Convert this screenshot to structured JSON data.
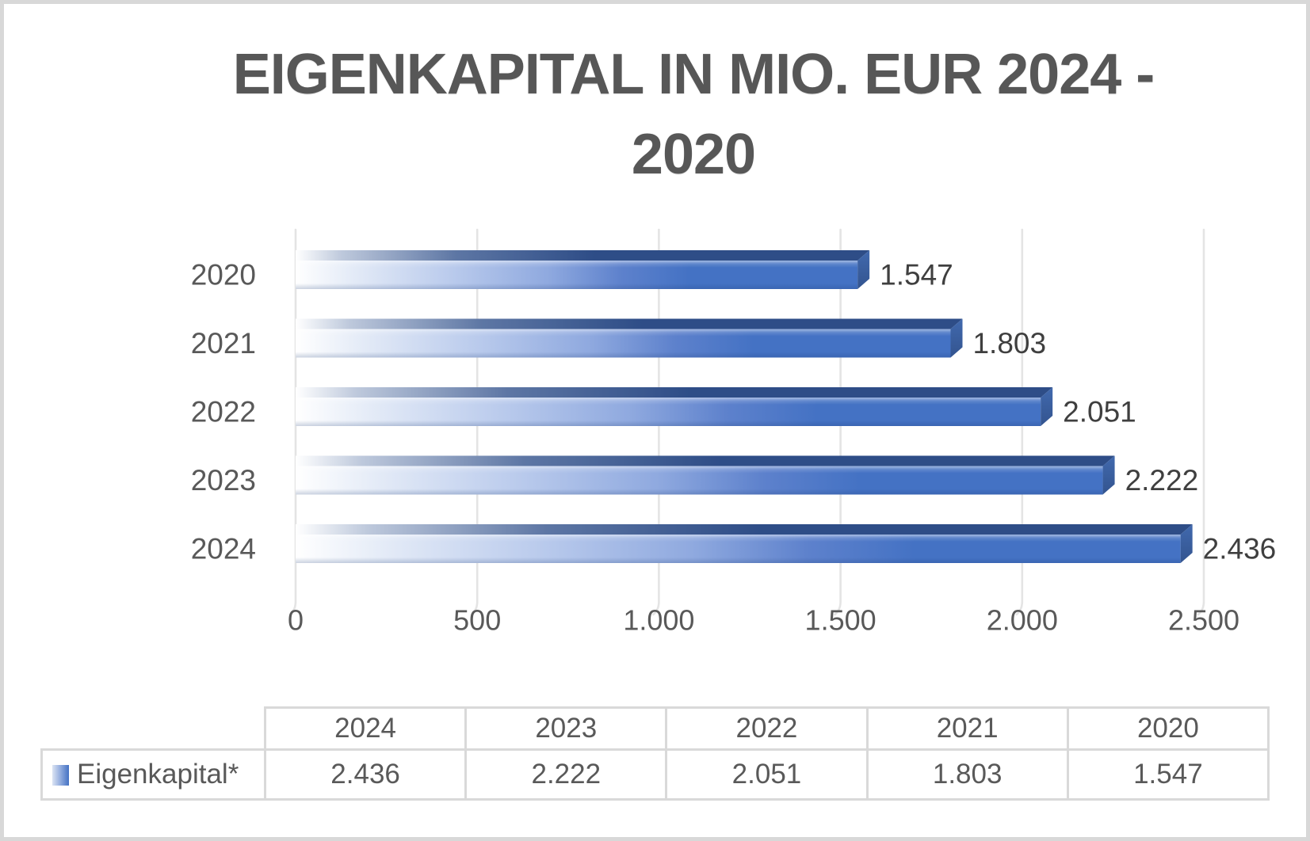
{
  "title": "EIGENKAPITAL IN MIO. EUR 2024 - 2020",
  "chart_data": {
    "type": "bar",
    "orientation": "horizontal",
    "title": "EIGENKAPITAL IN MIO. EUR 2024 - 2020",
    "categories": [
      "2020",
      "2021",
      "2022",
      "2023",
      "2024"
    ],
    "series": [
      {
        "name": "Eigenkapital*",
        "values": [
          1547,
          1803,
          2051,
          2222,
          2436
        ]
      }
    ],
    "value_labels": [
      "1.547",
      "1.803",
      "2.051",
      "2.222",
      "2.436"
    ],
    "x_axis": {
      "min": 0,
      "max": 2500,
      "ticks": [
        0,
        500,
        1000,
        1500,
        2000,
        2500
      ],
      "tick_labels": [
        "0",
        "500",
        "1.000",
        "1.500",
        "2.000",
        "2.500"
      ]
    },
    "grid": true,
    "legend_position": "bottom-table",
    "bar_style": "3d-gradient",
    "colors": {
      "bar_front": "#4472C4",
      "bar_top": "#2E4D87",
      "bar_side_top": "#4169AE",
      "bar_side_bottom": "#33548F",
      "grid": "#E4E4E4",
      "axis_text": "#595959",
      "value_label_text": "#3F3F3F",
      "title_text": "#575757",
      "table_border": "#D9D9D9",
      "frame": "#D8D8D8"
    }
  },
  "table": {
    "legend_label": "Eigenkapital*",
    "columns": [
      "2024",
      "2023",
      "2022",
      "2021",
      "2020"
    ],
    "rows": [
      {
        "label": "Eigenkapital*",
        "values": [
          "2.436",
          "2.222",
          "2.051",
          "1.803",
          "1.547"
        ]
      }
    ]
  }
}
